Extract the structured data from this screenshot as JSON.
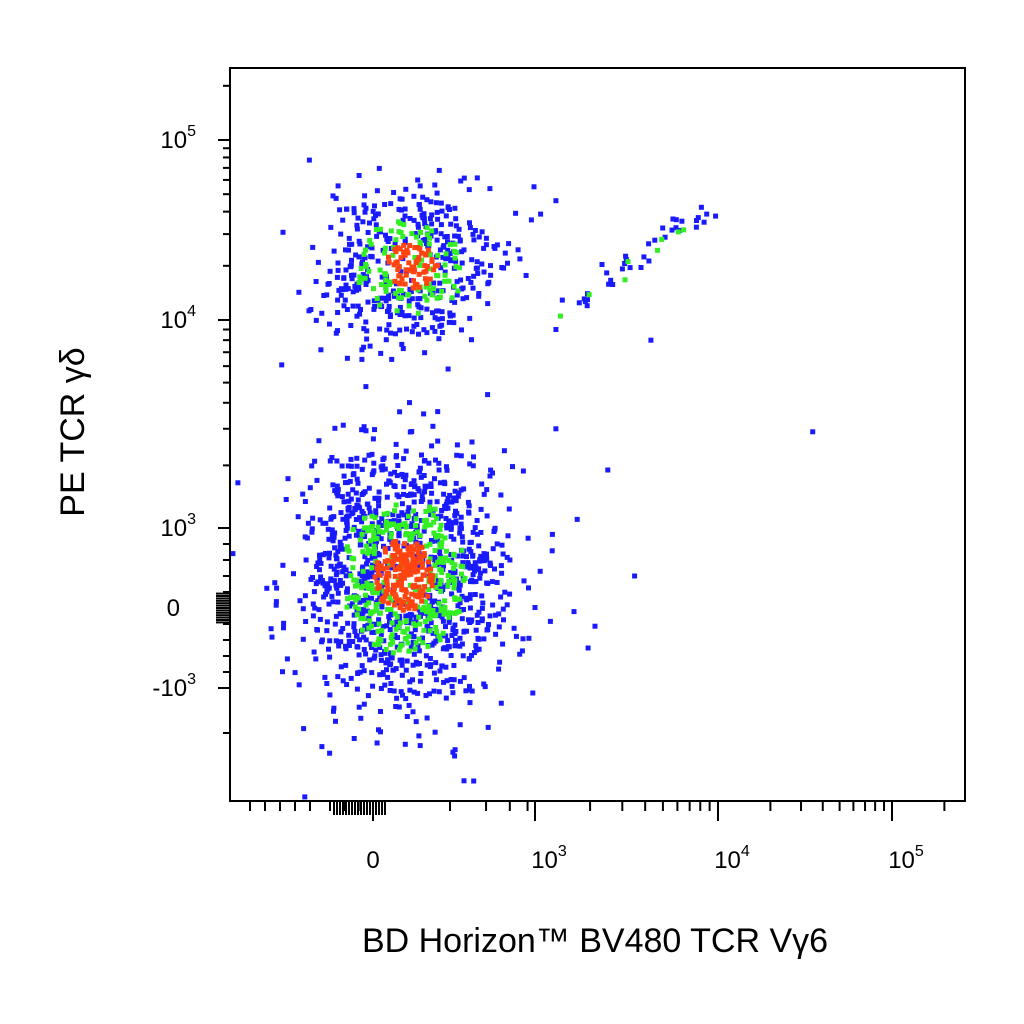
{
  "chart_data": {
    "type": "scatter",
    "title": "",
    "xlabel": "BD Horizon™ BV480 TCR Vγ6",
    "ylabel": "PE TCR γδ",
    "x_scale": "biexponential",
    "y_scale": "biexponential",
    "xlim": [
      -350,
      200000
    ],
    "ylim": [
      -2000,
      200000
    ],
    "x_ticks": [
      {
        "value": 0,
        "base": "0",
        "exp": ""
      },
      {
        "value": 1000,
        "base": "10",
        "exp": "3"
      },
      {
        "value": 10000,
        "base": "10",
        "exp": "4"
      },
      {
        "value": 100000,
        "base": "10",
        "exp": "5"
      }
    ],
    "y_ticks": [
      {
        "value": 100000,
        "base": "10",
        "exp": "5"
      },
      {
        "value": 10000,
        "base": "10",
        "exp": "4"
      },
      {
        "value": 1000,
        "base": "10",
        "exp": "3"
      },
      {
        "value": 0,
        "base": "0",
        "exp": ""
      },
      {
        "value": -1000,
        "base": "-10",
        "exp": "3"
      }
    ],
    "density_colors": {
      "low": "#1a1aff",
      "mid": "#33ee22",
      "high": "#ff4411"
    },
    "populations": [
      {
        "name_hint": "",
        "x_center": 120,
        "x_spread": 150,
        "y_center": 400,
        "y_spread": 700,
        "count": 1500
      },
      {
        "name_hint": "",
        "x_center": 150,
        "x_spread": 140,
        "y_center": 20000,
        "y_spread": 11000,
        "count": 560
      }
    ],
    "diagonal_points": [
      [
        1500,
        12000
      ],
      [
        1800,
        13000
      ],
      [
        2000,
        14000
      ],
      [
        2300,
        16000
      ],
      [
        2600,
        17500
      ],
      [
        3000,
        19000
      ],
      [
        3400,
        21000
      ],
      [
        3900,
        23000
      ],
      [
        4500,
        26000
      ],
      [
        5100,
        28500
      ],
      [
        5700,
        31000
      ],
      [
        6300,
        33500
      ],
      [
        7000,
        36000
      ],
      [
        7800,
        39000
      ],
      [
        8400,
        42000
      ]
    ],
    "outliers": [
      [
        35000,
        2900
      ],
      [
        2500,
        1900
      ],
      [
        1700,
        1100
      ],
      [
        3500,
        400
      ],
      [
        1950,
        -500
      ],
      [
        1300,
        3000
      ],
      [
        1300,
        46000
      ],
      [
        950,
        36000
      ],
      [
        1300,
        9000
      ],
      [
        4300,
        8000
      ]
    ]
  }
}
